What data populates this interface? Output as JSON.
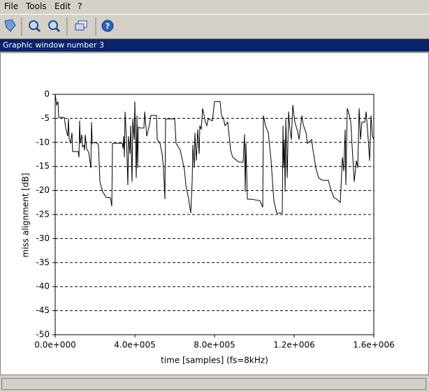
{
  "menu": [
    "File",
    "Tools",
    "Edit",
    "?"
  ],
  "window_title": "Graphic window number 3",
  "chart_data": {
    "type": "line",
    "xlabel": "time [samples] (fs=8kHz)",
    "ylabel": "miss alignment [dB]",
    "xlim": [
      0,
      1600000
    ],
    "ylim": [
      -50,
      0
    ],
    "xticks": [
      {
        "value": 0,
        "label": "0.0e+000"
      },
      {
        "value": 400000,
        "label": "4.0e+005"
      },
      {
        "value": 800000,
        "label": "8.0e+005"
      },
      {
        "value": 1200000,
        "label": "1.2e+006"
      },
      {
        "value": 1600000,
        "label": "1.6e+006"
      }
    ],
    "yticks": [
      0,
      -5,
      -10,
      -15,
      -20,
      -25,
      -30,
      -35,
      -40,
      -45,
      -50
    ],
    "grid": true,
    "color": "#000000",
    "x": [
      0,
      7000,
      14000,
      17500,
      45600,
      52600,
      63200,
      66700,
      70200,
      77200,
      84200,
      87700,
      115800,
      119300,
      122800,
      126300,
      133300,
      136900,
      143900,
      147400,
      150900,
      157900,
      168400,
      175500,
      179000,
      182500,
      186000,
      193000,
      214000,
      217600,
      224600,
      238600,
      256200,
      277200,
      284200,
      287700,
      336900,
      340400,
      343900,
      347400,
      350900,
      357900,
      364900,
      368400,
      375500,
      379000,
      386000,
      389500,
      396500,
      400000,
      407000,
      410600,
      414100,
      417600,
      424600,
      445600,
      449200,
      459700,
      473700,
      480700,
      508800,
      512300,
      526400,
      536900,
      543900,
      550900,
      554400,
      600000,
      607100,
      628100,
      649200,
      656200,
      670200,
      680700,
      687800,
      691300,
      698300,
      701800,
      708800,
      715800,
      722900,
      726400,
      733400,
      740400,
      754400,
      761500,
      768500,
      789500,
      800000,
      828100,
      835100,
      845700,
      852700,
      866700,
      880800,
      891300,
      922900,
      943900,
      950900,
      954400,
      958000,
      965000,
      979000,
      1028100,
      1042200,
      1045700,
      1056200,
      1070200,
      1084300,
      1091300,
      1098300,
      1112400,
      1140400,
      1144000,
      1147500,
      1151000,
      1154500,
      1158000,
      1165000,
      1172000,
      1179000,
      1186100,
      1193100,
      1203600,
      1217600,
      1224600,
      1238700,
      1245700,
      1259700,
      1266700,
      1287800,
      1294800,
      1308800,
      1322900,
      1343900,
      1372000,
      1382500,
      1400000,
      1414100,
      1431700,
      1442200,
      1449200,
      1456200,
      1459700,
      1466700,
      1477300,
      1484300,
      1491300,
      1501800,
      1512400,
      1519400,
      1526400,
      1533400,
      1540400,
      1554500,
      1561500,
      1572000,
      1579000,
      1586100,
      1593100,
      1600000
    ],
    "values": [
      0,
      -2.2,
      -1.5,
      -4.8,
      -4.8,
      -7.0,
      -8.7,
      -5.1,
      -9.2,
      -10.2,
      -8.0,
      -11.9,
      -11.9,
      -13.1,
      -5.5,
      -10.2,
      -8.4,
      -10.9,
      -10.6,
      -11.6,
      -8.4,
      -11.3,
      -12.1,
      -14.2,
      -15.3,
      -5.8,
      -10.2,
      -10.0,
      -10.2,
      -10.9,
      -18.2,
      -20.3,
      -21.4,
      -21.5,
      -23.3,
      -10.2,
      -10.2,
      -11.3,
      -8.7,
      -13.1,
      -3.6,
      -9.4,
      -18.9,
      -8.7,
      -12.4,
      -6.5,
      -18.2,
      -5.1,
      -9.4,
      -1.5,
      -17.4,
      -4.4,
      -15.3,
      -6.8,
      -7.0,
      -7.0,
      -3.6,
      -8.7,
      -6.3,
      -4.4,
      -4.4,
      -9.4,
      -10.2,
      -12.4,
      -15.3,
      -21.8,
      -5.1,
      -5.1,
      -10.2,
      -11.6,
      -15.7,
      -18.9,
      -21.8,
      -24.7,
      -18.2,
      -10.5,
      -15.3,
      -8.0,
      -13.8,
      -7.3,
      -12.4,
      -6.5,
      -7.3,
      -2.9,
      -5.8,
      -6.5,
      -5.1,
      -5.5,
      -1.5,
      -1.5,
      -4.4,
      -5.1,
      -6.5,
      -5.8,
      -11.6,
      -13.1,
      -14.1,
      -14.1,
      -8.3,
      -20.3,
      -10.2,
      -21.8,
      -21.8,
      -22.1,
      -23.5,
      -4.4,
      -6.5,
      -8.0,
      -13.8,
      -18.2,
      -22.2,
      -24.7,
      -24.7,
      -6.5,
      -15.3,
      -9.4,
      -20.3,
      -5.1,
      -17.4,
      -3.6,
      -7.3,
      -9.4,
      -2.2,
      -5.8,
      -7.7,
      -9.4,
      -4.4,
      -6.3,
      -8.0,
      -10.2,
      -9.4,
      -11.6,
      -15.3,
      -17.4,
      -17.9,
      -17.9,
      -19.6,
      -21.5,
      -21.8,
      -22.5,
      -13.1,
      -16.0,
      -7.3,
      -18.9,
      -2.9,
      -4.4,
      -5.8,
      -10.9,
      -18.2,
      -13.8,
      -15.3,
      -2.9,
      -9.4,
      -5.8,
      -5.8,
      -3.6,
      -9.4,
      -13.8,
      -4.4,
      -8.7,
      -9.4
    ]
  }
}
